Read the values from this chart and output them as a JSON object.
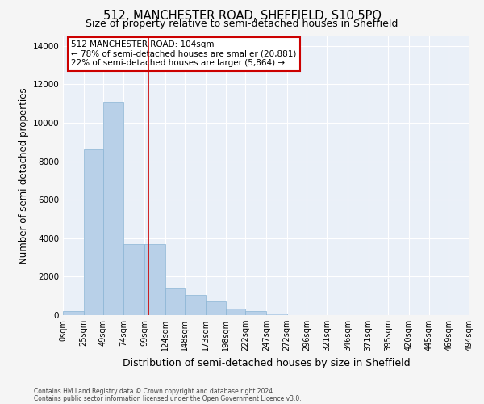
{
  "title": "512, MANCHESTER ROAD, SHEFFIELD, S10 5PQ",
  "subtitle": "Size of property relative to semi-detached houses in Sheffield",
  "xlabel": "Distribution of semi-detached houses by size in Sheffield",
  "ylabel": "Number of semi-detached properties",
  "footnote1": "Contains HM Land Registry data © Crown copyright and database right 2024.",
  "footnote2": "Contains public sector information licensed under the Open Government Licence v3.0.",
  "annotation_title": "512 MANCHESTER ROAD: 104sqm",
  "annotation_line2": "← 78% of semi-detached houses are smaller (20,881)",
  "annotation_line3": "22% of semi-detached houses are larger (5,864) →",
  "property_sqm": 104,
  "bar_color": "#b8d0e8",
  "bar_edge_color": "#8ab4d4",
  "bin_edges": [
    0,
    25,
    49,
    74,
    99,
    124,
    148,
    173,
    198,
    222,
    247,
    272,
    296,
    321,
    346,
    371,
    395,
    420,
    445,
    469,
    494
  ],
  "bar_heights": [
    200,
    8600,
    11100,
    3700,
    3700,
    1400,
    1050,
    700,
    350,
    200,
    100,
    0,
    0,
    0,
    0,
    0,
    0,
    0,
    0,
    0
  ],
  "ylim": [
    0,
    14500
  ],
  "yticks": [
    0,
    2000,
    4000,
    6000,
    8000,
    10000,
    12000,
    14000
  ],
  "xtick_labels": [
    "0sqm",
    "25sqm",
    "49sqm",
    "74sqm",
    "99sqm",
    "124sqm",
    "148sqm",
    "173sqm",
    "198sqm",
    "222sqm",
    "247sqm",
    "272sqm",
    "296sqm",
    "321sqm",
    "346sqm",
    "371sqm",
    "395sqm",
    "420sqm",
    "445sqm",
    "469sqm",
    "494sqm"
  ],
  "red_line_x": 104,
  "background_color": "#eaf0f8",
  "grid_color": "#ffffff",
  "annotation_box_color": "#ffffff",
  "annotation_border_color": "#cc0000",
  "title_fontsize": 10.5,
  "subtitle_fontsize": 9,
  "axis_label_fontsize": 8.5,
  "tick_fontsize": 7.5,
  "annotation_fontsize": 7.5
}
